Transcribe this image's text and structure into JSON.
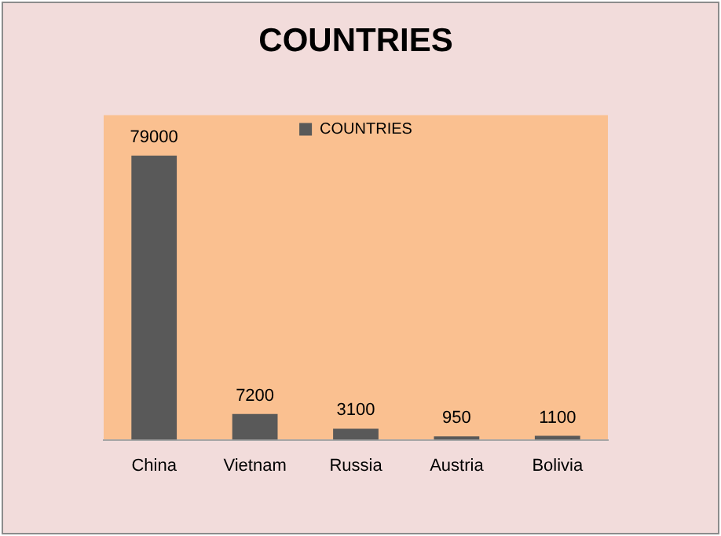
{
  "chart_data": {
    "type": "bar",
    "title": "COUNTRIES",
    "categories": [
      "China",
      "Vietnam",
      "Russia",
      "Austria",
      "Bolivia"
    ],
    "series": [
      {
        "name": "COUNTRIES",
        "color": "#595959",
        "values": [
          79000,
          7200,
          3100,
          950,
          1100
        ]
      }
    ],
    "data_labels": true,
    "legend": "top",
    "grid": false
  }
}
